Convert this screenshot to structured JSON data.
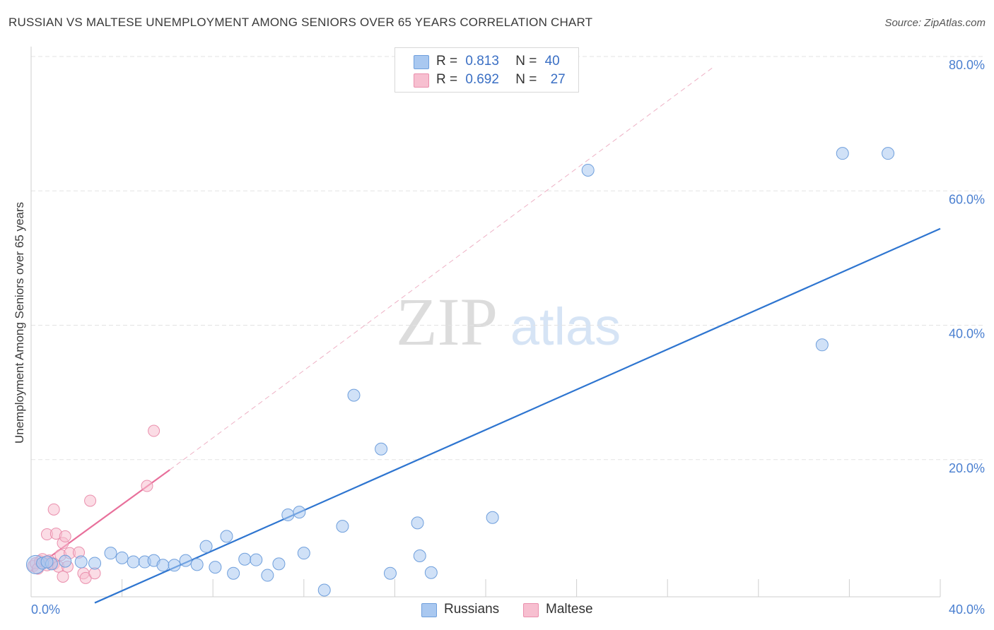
{
  "title": "RUSSIAN VS MALTESE UNEMPLOYMENT AMONG SENIORS OVER 65 YEARS CORRELATION CHART",
  "source": "Source: ZipAtlas.com",
  "watermark": {
    "zip": "ZIP",
    "atlas": "atlas"
  },
  "legend": {
    "russians": {
      "r_label": "R =",
      "r_value": "0.813",
      "n_label": "N =",
      "n_value": "40"
    },
    "maltese": {
      "r_label": "R =",
      "r_value": "0.692",
      "n_label": "N =",
      "n_value": "27"
    }
  },
  "bottom_legend": {
    "russians": "Russians",
    "maltese": "Maltese"
  },
  "colors": {
    "russians_fill": "#a9c8f0",
    "russians_stroke": "#6f9fdc",
    "russians_line": "#2e75d0",
    "maltese_fill": "#f7bfd0",
    "maltese_stroke": "#ea8fad",
    "maltese_line": "#e8709b",
    "axis_text": "#4a7fd0",
    "grid": "#e3e3e3"
  },
  "chart_data": {
    "type": "scatter",
    "title": "RUSSIAN VS MALTESE UNEMPLOYMENT AMONG SENIORS OVER 65 YEARS CORRELATION CHART",
    "xlabel": "",
    "ylabel": "Unemployment Among Seniors over 65 years",
    "xlim": [
      0,
      40
    ],
    "ylim": [
      0,
      80
    ],
    "x_tick_labels": [
      "0.0%",
      "40.0%"
    ],
    "y_ticks": [
      20,
      40,
      60,
      80
    ],
    "y_tick_labels": [
      "20.0%",
      "40.0%",
      "60.0%",
      "80.0%"
    ],
    "grid": true,
    "series": [
      {
        "name": "Russians",
        "r": 0.813,
        "n": 40,
        "points": [
          [
            0.2,
            4.8
          ],
          [
            0.5,
            5.0
          ],
          [
            0.9,
            4.9
          ],
          [
            1.5,
            5.3
          ],
          [
            2.2,
            5.2
          ],
          [
            2.8,
            5.0
          ],
          [
            3.5,
            6.5
          ],
          [
            4.0,
            5.8
          ],
          [
            4.5,
            5.2
          ],
          [
            5.0,
            5.2
          ],
          [
            5.4,
            5.4
          ],
          [
            5.8,
            4.7
          ],
          [
            6.3,
            4.7
          ],
          [
            6.8,
            5.4
          ],
          [
            7.3,
            4.8
          ],
          [
            7.7,
            7.5
          ],
          [
            8.1,
            4.4
          ],
          [
            8.6,
            9.0
          ],
          [
            8.9,
            3.5
          ],
          [
            9.4,
            5.6
          ],
          [
            9.9,
            5.5
          ],
          [
            10.4,
            3.2
          ],
          [
            10.9,
            4.9
          ],
          [
            11.3,
            12.2
          ],
          [
            11.8,
            12.6
          ],
          [
            12.0,
            6.5
          ],
          [
            12.9,
            1.0
          ],
          [
            13.7,
            10.5
          ],
          [
            14.2,
            30.0
          ],
          [
            15.4,
            22.0
          ],
          [
            15.8,
            3.5
          ],
          [
            17.0,
            11.0
          ],
          [
            17.1,
            6.1
          ],
          [
            17.6,
            3.6
          ],
          [
            20.3,
            11.8
          ],
          [
            24.5,
            63.5
          ],
          [
            34.8,
            37.5
          ],
          [
            35.7,
            66.0
          ],
          [
            37.7,
            66.0
          ],
          [
            0.7,
            5.2
          ]
        ],
        "trend": {
          "x": [
            2.8,
            40.0
          ],
          "y": [
            -0.9,
            54.8
          ]
        }
      },
      {
        "name": "Maltese",
        "r": 0.692,
        "n": 27,
        "points": [
          [
            0.1,
            4.6
          ],
          [
            0.2,
            5.0
          ],
          [
            0.3,
            4.2
          ],
          [
            0.4,
            5.3
          ],
          [
            0.5,
            5.6
          ],
          [
            0.6,
            5.1
          ],
          [
            0.7,
            4.7
          ],
          [
            0.8,
            5.4
          ],
          [
            0.9,
            5.0
          ],
          [
            1.0,
            4.9
          ],
          [
            0.7,
            9.3
          ],
          [
            1.0,
            13.0
          ],
          [
            1.1,
            9.4
          ],
          [
            1.2,
            4.5
          ],
          [
            1.3,
            6.2
          ],
          [
            1.4,
            8.0
          ],
          [
            1.4,
            3.0
          ],
          [
            1.5,
            9.0
          ],
          [
            1.6,
            4.5
          ],
          [
            1.7,
            6.5
          ],
          [
            2.1,
            6.6
          ],
          [
            2.3,
            3.5
          ],
          [
            2.4,
            2.8
          ],
          [
            2.6,
            14.3
          ],
          [
            2.8,
            3.5
          ],
          [
            5.1,
            16.5
          ],
          [
            5.4,
            24.7
          ]
        ],
        "trend": {
          "x": [
            0.0,
            6.1
          ],
          "y": [
            3.9,
            18.9
          ]
        },
        "trend_extension": {
          "x": [
            6.1,
            30.0
          ],
          "y": [
            18.9,
            78.8
          ]
        }
      }
    ]
  }
}
